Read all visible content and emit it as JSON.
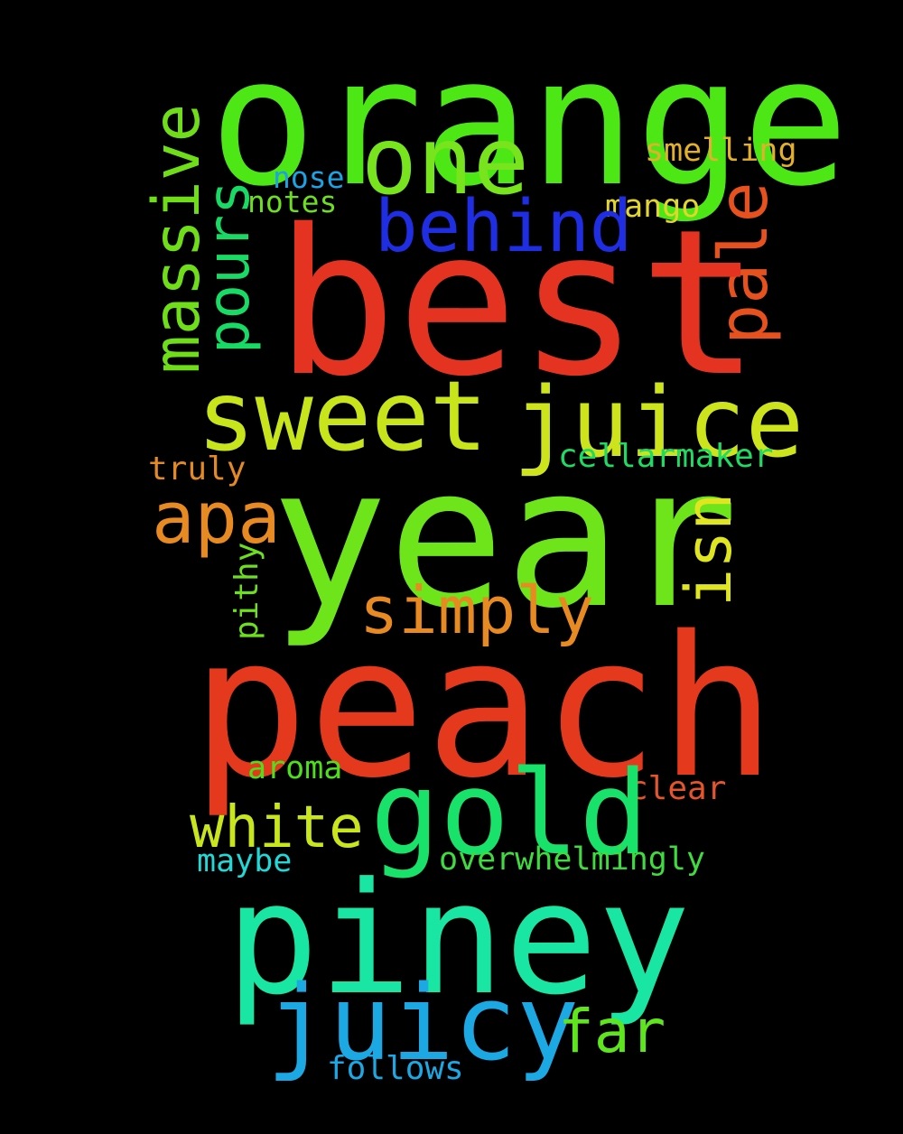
{
  "background_color": "#000000",
  "words": [
    {
      "text": "orange",
      "color": "#4ee716",
      "orientation": "horizontal"
    },
    {
      "text": "one",
      "color": "#77e41d",
      "orientation": "horizontal"
    },
    {
      "text": "smelling",
      "color": "#e3b02c",
      "orientation": "horizontal"
    },
    {
      "text": "nose",
      "color": "#1ca3e3",
      "orientation": "horizontal"
    },
    {
      "text": "notes",
      "color": "#6ddf1e",
      "orientation": "horizontal"
    },
    {
      "text": "mango",
      "color": "#e2d52c",
      "orientation": "horizontal"
    },
    {
      "text": "behind",
      "color": "#1f2ee3",
      "orientation": "horizontal"
    },
    {
      "text": "massive",
      "color": "#6fde18",
      "orientation": "vertical"
    },
    {
      "text": "pours",
      "color": "#18db66",
      "orientation": "vertical"
    },
    {
      "text": "pale",
      "color": "#e6511e",
      "orientation": "vertical"
    },
    {
      "text": "best",
      "color": "#e43320",
      "orientation": "horizontal"
    },
    {
      "text": "sweet",
      "color": "#c8e51c",
      "orientation": "horizontal"
    },
    {
      "text": "juice",
      "color": "#cde31c",
      "orientation": "horizontal"
    },
    {
      "text": "truly",
      "color": "#e38a25",
      "orientation": "horizontal"
    },
    {
      "text": "cellarmaker",
      "color": "#1edb63",
      "orientation": "horizontal"
    },
    {
      "text": "apa",
      "color": "#e88a22",
      "orientation": "horizontal"
    },
    {
      "text": "year",
      "color": "#6ee51a",
      "orientation": "horizontal"
    },
    {
      "text": "isn",
      "color": "#dfe620",
      "orientation": "vertical"
    },
    {
      "text": "pithy",
      "color": "#6ddf1e",
      "orientation": "vertical"
    },
    {
      "text": "simply",
      "color": "#e88a22",
      "orientation": "horizontal"
    },
    {
      "text": "peach",
      "color": "#e4391c",
      "orientation": "horizontal"
    },
    {
      "text": "aroma",
      "color": "#4fdd1c",
      "orientation": "horizontal"
    },
    {
      "text": "clear",
      "color": "#e5542a",
      "orientation": "horizontal"
    },
    {
      "text": "gold",
      "color": "#18e269",
      "orientation": "horizontal"
    },
    {
      "text": "white",
      "color": "#c9e51b",
      "orientation": "horizontal"
    },
    {
      "text": "maybe",
      "color": "#22d8d6",
      "orientation": "horizontal"
    },
    {
      "text": "overwhelmingly",
      "color": "#3fdb3f",
      "orientation": "horizontal"
    },
    {
      "text": "piney",
      "color": "#19e6a3",
      "orientation": "horizontal"
    },
    {
      "text": "juicy",
      "color": "#1ca8e3",
      "orientation": "horizontal"
    },
    {
      "text": "far",
      "color": "#5fe51e",
      "orientation": "horizontal"
    },
    {
      "text": "follows",
      "color": "#1ca8e3",
      "orientation": "horizontal"
    }
  ]
}
